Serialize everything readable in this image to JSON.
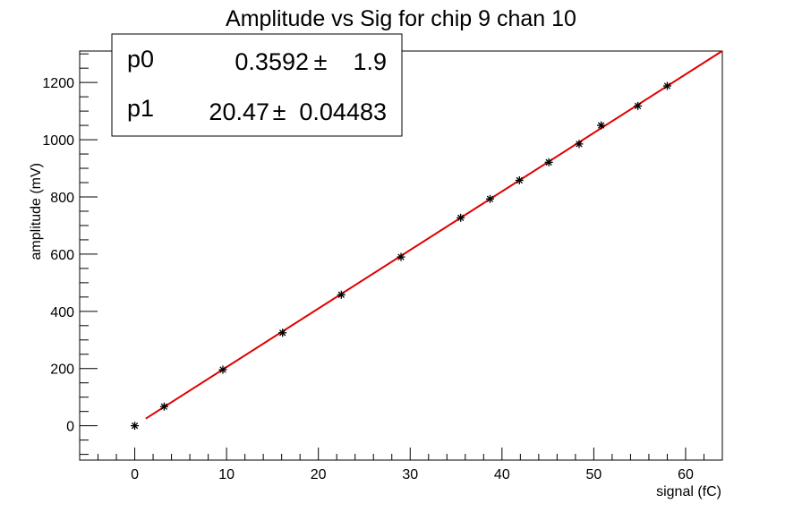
{
  "chart_data": {
    "type": "scatter",
    "title": "Amplitude vs Sig for chip 9 chan 10",
    "xlabel": "signal (fC)",
    "ylabel": "amplitude (mV)",
    "xlim": [
      -6,
      64
    ],
    "ylim": [
      -120,
      1310
    ],
    "x_ticks": [
      0,
      10,
      20,
      30,
      40,
      50,
      60
    ],
    "y_ticks": [
      0,
      200,
      400,
      600,
      800,
      1000,
      1200
    ],
    "grid": false,
    "series": [
      {
        "marker": "star",
        "color": "#000000",
        "x": [
          0,
          3.2,
          9.6,
          16.1,
          22.5,
          29.0,
          35.5,
          38.7,
          41.9,
          45.1,
          48.4,
          50.8,
          54.8,
          58.0
        ],
        "y": [
          0,
          67,
          196,
          325,
          458,
          590,
          727,
          793,
          858,
          921,
          985,
          1050,
          1118,
          1188
        ]
      }
    ],
    "fit": {
      "color": "#e00000",
      "x_range": [
        1.2,
        64
      ],
      "p0": 0.3592,
      "p1": 20.47
    },
    "stats_box": {
      "rows": [
        {
          "name": "p0",
          "value": "0.3592",
          "pm": "±",
          "error": "1.9"
        },
        {
          "name": "p1",
          "value": "20.47",
          "pm": "±",
          "error": "0.04483"
        }
      ]
    }
  }
}
